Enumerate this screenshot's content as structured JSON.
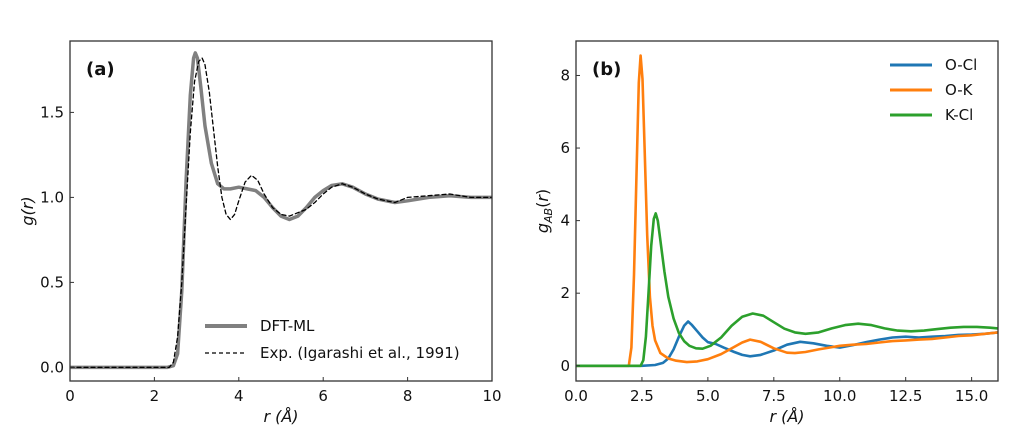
{
  "chart_data": [
    {
      "type": "line",
      "panel_label": "(a)",
      "title": "",
      "xlabel": "r (Å)",
      "ylabel": "g(r)",
      "xlim": [
        0,
        10
      ],
      "ylim": [
        -0.08,
        1.92
      ],
      "xticks": [
        0,
        2,
        4,
        6,
        8,
        10
      ],
      "xtick_labels": [
        "0",
        "2",
        "4",
        "6",
        "8",
        "10"
      ],
      "yticks": [
        0.0,
        0.5,
        1.0,
        1.5
      ],
      "ytick_labels": [
        "0.0",
        "0.5",
        "1.0",
        "1.5"
      ],
      "grid": false,
      "legend_position": "bottom-right",
      "series": [
        {
          "name": "DFT-ML",
          "color": "#808080",
          "style": "solid",
          "x": [
            0,
            2.3,
            2.45,
            2.55,
            2.65,
            2.75,
            2.85,
            2.93,
            2.97,
            3.02,
            3.1,
            3.2,
            3.35,
            3.5,
            3.65,
            3.8,
            4.0,
            4.2,
            4.4,
            4.6,
            4.8,
            5.0,
            5.2,
            5.4,
            5.6,
            5.8,
            6.0,
            6.2,
            6.45,
            6.7,
            7.0,
            7.3,
            7.7,
            8.0,
            8.5,
            9.0,
            9.5,
            10.0
          ],
          "y": [
            0,
            0,
            0.01,
            0.08,
            0.45,
            1.1,
            1.6,
            1.82,
            1.85,
            1.82,
            1.65,
            1.42,
            1.2,
            1.08,
            1.05,
            1.05,
            1.06,
            1.05,
            1.04,
            1.0,
            0.94,
            0.89,
            0.87,
            0.89,
            0.94,
            1.0,
            1.04,
            1.07,
            1.08,
            1.06,
            1.02,
            0.99,
            0.97,
            0.98,
            1.0,
            1.01,
            1.0,
            1.0
          ]
        },
        {
          "name": "Exp. (Igarashi et al., 1991)",
          "color": "#000000",
          "style": "dashed",
          "x": [
            0,
            2.35,
            2.45,
            2.55,
            2.65,
            2.75,
            2.85,
            2.95,
            3.05,
            3.13,
            3.2,
            3.3,
            3.4,
            3.5,
            3.6,
            3.7,
            3.8,
            3.9,
            4.0,
            4.15,
            4.3,
            4.45,
            4.6,
            4.8,
            5.0,
            5.2,
            5.4,
            5.6,
            5.8,
            6.0,
            6.2,
            6.45,
            6.7,
            7.0,
            7.3,
            7.7,
            8.0,
            8.5,
            9.0,
            9.5,
            10.0
          ],
          "y": [
            0,
            0,
            0.03,
            0.18,
            0.5,
            0.95,
            1.38,
            1.68,
            1.8,
            1.82,
            1.78,
            1.62,
            1.4,
            1.18,
            1.0,
            0.9,
            0.87,
            0.9,
            0.98,
            1.09,
            1.13,
            1.1,
            1.02,
            0.94,
            0.9,
            0.89,
            0.91,
            0.93,
            0.97,
            1.02,
            1.06,
            1.08,
            1.06,
            1.02,
            0.99,
            0.97,
            1.0,
            1.01,
            1.02,
            1.0,
            1.0
          ]
        }
      ]
    },
    {
      "type": "line",
      "panel_label": "(b)",
      "title": "",
      "xlabel": "r (Å)",
      "ylabel": "g_AB(r)",
      "xlim": [
        0,
        16
      ],
      "ylim": [
        -0.42,
        8.95
      ],
      "xticks": [
        0.0,
        2.5,
        5.0,
        7.5,
        10.0,
        12.5,
        15.0
      ],
      "xtick_labels": [
        "0.0",
        "2.5",
        "5.0",
        "7.5",
        "10.0",
        "12.5",
        "15.0"
      ],
      "yticks": [
        0,
        2,
        4,
        6,
        8
      ],
      "ytick_labels": [
        "0",
        "2",
        "4",
        "6",
        "8"
      ],
      "grid": false,
      "legend_position": "top-right",
      "series": [
        {
          "name": "O-Cl",
          "color": "#1f77b4",
          "style": "solid",
          "x": [
            0,
            2.5,
            3.0,
            3.3,
            3.5,
            3.7,
            3.9,
            4.1,
            4.25,
            4.4,
            4.6,
            4.8,
            5.0,
            5.3,
            5.6,
            6.0,
            6.3,
            6.6,
            7.0,
            7.5,
            8.0,
            8.5,
            9.0,
            9.5,
            10.0,
            10.5,
            11.0,
            11.5,
            12.0,
            12.5,
            13.0,
            13.5,
            14.0,
            14.5,
            15.0,
            15.5,
            16.0
          ],
          "y": [
            0,
            0,
            0.02,
            0.08,
            0.2,
            0.45,
            0.8,
            1.1,
            1.22,
            1.12,
            0.95,
            0.78,
            0.65,
            0.6,
            0.5,
            0.38,
            0.3,
            0.26,
            0.3,
            0.42,
            0.58,
            0.66,
            0.62,
            0.55,
            0.5,
            0.57,
            0.65,
            0.72,
            0.78,
            0.8,
            0.78,
            0.8,
            0.82,
            0.85,
            0.86,
            0.88,
            0.92
          ]
        },
        {
          "name": "O-K",
          "color": "#ff7f0e",
          "style": "solid",
          "x": [
            0,
            2.0,
            2.1,
            2.2,
            2.3,
            2.38,
            2.45,
            2.52,
            2.6,
            2.7,
            2.8,
            2.9,
            3.0,
            3.2,
            3.5,
            3.8,
            4.2,
            4.6,
            5.0,
            5.5,
            6.0,
            6.3,
            6.6,
            7.0,
            7.5,
            8.0,
            8.3,
            8.7,
            9.2,
            9.6,
            10.0,
            10.5,
            11.0,
            11.5,
            12.0,
            12.5,
            13.0,
            13.5,
            14.0,
            14.5,
            15.0,
            15.5,
            16.0
          ],
          "y": [
            0,
            0,
            0.5,
            2.5,
            5.5,
            7.8,
            8.55,
            7.9,
            6.0,
            3.6,
            1.9,
            1.1,
            0.7,
            0.35,
            0.2,
            0.14,
            0.1,
            0.12,
            0.18,
            0.32,
            0.52,
            0.64,
            0.72,
            0.66,
            0.48,
            0.36,
            0.35,
            0.38,
            0.45,
            0.5,
            0.55,
            0.58,
            0.6,
            0.64,
            0.68,
            0.7,
            0.72,
            0.74,
            0.78,
            0.82,
            0.84,
            0.88,
            0.92
          ]
        },
        {
          "name": "K-Cl",
          "color": "#2ca02c",
          "style": "solid",
          "x": [
            0,
            2.45,
            2.55,
            2.65,
            2.75,
            2.85,
            2.95,
            3.02,
            3.1,
            3.2,
            3.35,
            3.5,
            3.7,
            3.9,
            4.1,
            4.3,
            4.55,
            4.8,
            5.1,
            5.5,
            5.9,
            6.3,
            6.7,
            7.1,
            7.5,
            7.9,
            8.3,
            8.7,
            9.2,
            9.7,
            10.2,
            10.7,
            11.2,
            11.7,
            12.2,
            12.7,
            13.2,
            13.7,
            14.2,
            14.7,
            15.2,
            15.7,
            16.0
          ],
          "y": [
            0,
            0,
            0.15,
            0.8,
            2.0,
            3.3,
            4.05,
            4.2,
            4.0,
            3.45,
            2.6,
            1.9,
            1.3,
            0.9,
            0.68,
            0.55,
            0.48,
            0.47,
            0.55,
            0.78,
            1.1,
            1.35,
            1.44,
            1.38,
            1.2,
            1.02,
            0.92,
            0.88,
            0.92,
            1.03,
            1.12,
            1.16,
            1.12,
            1.03,
            0.97,
            0.95,
            0.97,
            1.01,
            1.05,
            1.07,
            1.07,
            1.05,
            1.03
          ]
        }
      ]
    }
  ]
}
